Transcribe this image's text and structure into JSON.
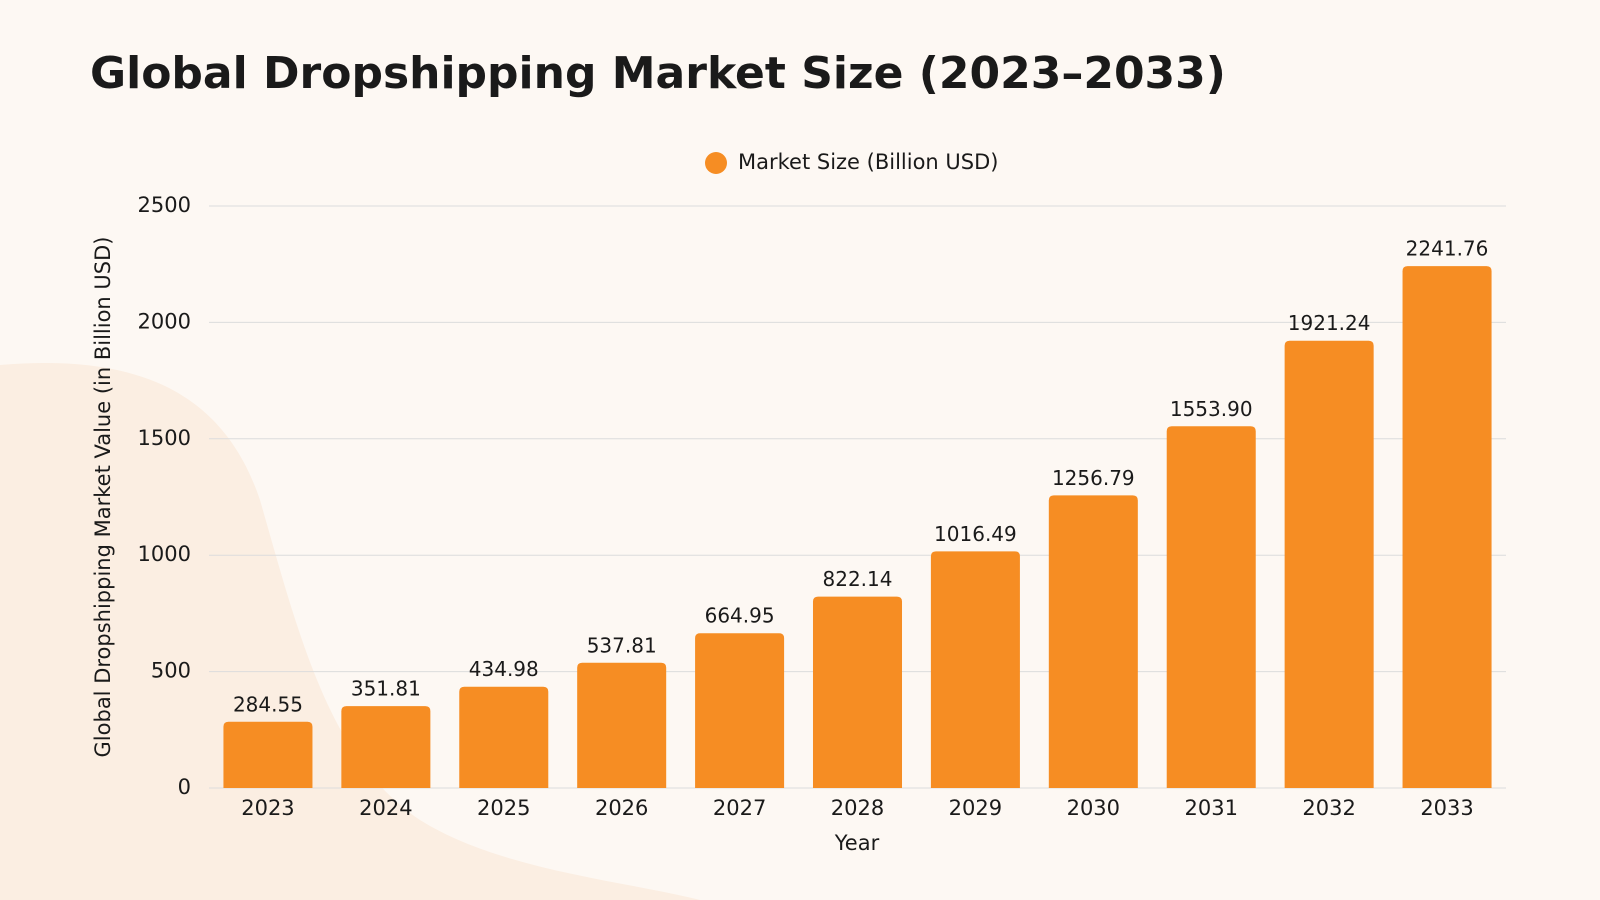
{
  "chart_data": {
    "type": "bar",
    "title": "Global Dropshipping Market Size (2023–2033)",
    "x_label": "Year",
    "y_label": "Global Dropshipping Market Value (in Billion USD)",
    "categories": [
      "2023",
      "2024",
      "2025",
      "2026",
      "2027",
      "2028",
      "2029",
      "2030",
      "2031",
      "2032",
      "2033"
    ],
    "series": [
      {
        "name": "Market Size (Billion USD)",
        "color": "#f68d23",
        "values": [
          284.55,
          351.81,
          434.98,
          537.81,
          664.95,
          822.14,
          1016.49,
          1256.79,
          1553.9,
          1921.24,
          2241.76
        ],
        "value_labels": [
          "284.55",
          "351.81",
          "434.98",
          "537.81",
          "664.95",
          "822.14",
          "1016.49",
          "1256.79",
          "1553.90",
          "1921.24",
          "2241.76"
        ]
      }
    ],
    "ylim": [
      0,
      2500
    ],
    "yticks": [
      0,
      500,
      1000,
      1500,
      2000,
      2500
    ],
    "grid": true,
    "legend": "top"
  }
}
